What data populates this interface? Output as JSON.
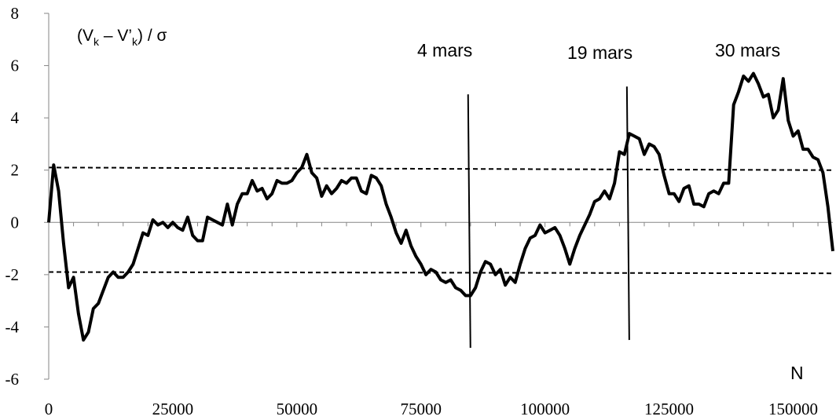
{
  "chart_data": {
    "type": "line",
    "ylabel": {
      "open": "(V",
      "sub1": "k",
      "minus": " – V’",
      "sub2": "k",
      "close": ") / σ"
    },
    "xlabel": "N",
    "xlim": [
      0,
      158000
    ],
    "ylim": [
      -6,
      8
    ],
    "x_ticks": [
      0,
      25000,
      50000,
      75000,
      100000,
      125000,
      150000
    ],
    "y_ticks": [
      -6,
      -4,
      -2,
      0,
      2,
      4,
      6,
      8
    ],
    "series": [
      {
        "color": "#000000",
        "x": [
          0,
          1000,
          2000,
          3000,
          4000,
          5000,
          6000,
          7000,
          8000,
          9000,
          10000,
          11000,
          12000,
          13000,
          14000,
          15000,
          16000,
          17000,
          18000,
          19000,
          20000,
          21000,
          22000,
          23000,
          24000,
          25000,
          26000,
          27000,
          28000,
          29000,
          30000,
          31000,
          32000,
          33000,
          34000,
          35000,
          36000,
          37000,
          38000,
          39000,
          40000,
          41000,
          42000,
          43000,
          44000,
          45000,
          46000,
          47000,
          48000,
          49000,
          50000,
          51000,
          52000,
          53000,
          54000,
          55000,
          56000,
          57000,
          58000,
          59000,
          60000,
          61000,
          62000,
          63000,
          64000,
          65000,
          66000,
          67000,
          68000,
          69000,
          70000,
          71000,
          72000,
          73000,
          74000,
          75000,
          76000,
          77000,
          78000,
          79000,
          80000,
          81000,
          82000,
          83000,
          84000,
          85000,
          86000,
          87000,
          88000,
          89000,
          90000,
          91000,
          92000,
          93000,
          94000,
          95000,
          96000,
          97000,
          98000,
          99000,
          100000,
          101000,
          102000,
          103000,
          104000,
          105000,
          106000,
          107000,
          108000,
          109000,
          110000,
          111000,
          112000,
          113000,
          114000,
          115000,
          116000,
          117000,
          118000,
          119000,
          120000,
          121000,
          122000,
          123000,
          124000,
          125000,
          126000,
          127000,
          128000,
          129000,
          130000,
          131000,
          132000,
          133000,
          134000,
          135000,
          136000,
          137000,
          138000,
          139000,
          140000,
          141000,
          142000,
          143000,
          144000,
          145000,
          146000,
          147000,
          148000,
          149000,
          150000,
          151000,
          152000,
          153000,
          154000,
          155000,
          156000,
          157000,
          158000
        ],
        "values": [
          0,
          2.2,
          1.2,
          -0.8,
          -2.5,
          -2.1,
          -3.5,
          -4.5,
          -4.2,
          -3.3,
          -3.1,
          -2.6,
          -2.1,
          -1.9,
          -2.1,
          -2.1,
          -1.9,
          -1.6,
          -1.0,
          -0.4,
          -0.5,
          0.1,
          -0.1,
          0.0,
          -0.2,
          0.0,
          -0.2,
          -0.3,
          0.2,
          -0.5,
          -0.7,
          -0.7,
          0.2,
          0.1,
          0.0,
          -0.1,
          0.7,
          -0.1,
          0.7,
          1.1,
          1.1,
          1.6,
          1.2,
          1.3,
          0.9,
          1.1,
          1.6,
          1.5,
          1.5,
          1.6,
          1.9,
          2.1,
          2.6,
          1.9,
          1.7,
          1.0,
          1.4,
          1.1,
          1.3,
          1.6,
          1.5,
          1.7,
          1.7,
          1.2,
          1.1,
          1.8,
          1.7,
          1.4,
          0.7,
          0.2,
          -0.4,
          -0.8,
          -0.3,
          -0.9,
          -1.3,
          -1.6,
          -2.0,
          -1.8,
          -1.9,
          -2.2,
          -2.3,
          -2.2,
          -2.5,
          -2.6,
          -2.8,
          -2.8,
          -2.5,
          -1.9,
          -1.5,
          -1.6,
          -2.0,
          -1.8,
          -2.4,
          -2.1,
          -2.3,
          -1.6,
          -1.0,
          -0.6,
          -0.5,
          -0.1,
          -0.4,
          -0.3,
          -0.2,
          -0.5,
          -1.0,
          -1.6,
          -1.0,
          -0.5,
          -0.1,
          0.3,
          0.8,
          0.9,
          1.2,
          0.9,
          1.5,
          2.7,
          2.6,
          3.4,
          3.3,
          3.2,
          2.6,
          3.0,
          2.9,
          2.6,
          1.8,
          1.1,
          1.1,
          0.8,
          1.3,
          1.4,
          0.7,
          0.7,
          0.6,
          1.1,
          1.2,
          1.1,
          1.5,
          1.5,
          4.5,
          5.0,
          5.6,
          5.4,
          5.7,
          5.3,
          4.8,
          4.9,
          4.0,
          4.3,
          5.5,
          3.9,
          3.3,
          3.5,
          2.8,
          2.8,
          2.5,
          2.4,
          1.9,
          0.6,
          -1.1
        ]
      }
    ],
    "threshold_lines": [
      {
        "y_start": 2.1,
        "y_end": 2.0,
        "style": "dashed"
      },
      {
        "y_start": -1.9,
        "y_end": -1.95,
        "style": "dashed"
      }
    ],
    "annotations": [
      {
        "label": "4 mars",
        "x": 84500,
        "y_top": 4.9,
        "y_bottom": -4.8
      },
      {
        "label": "19 mars",
        "x": 116500,
        "y_top": 5.2,
        "y_bottom": -4.5
      },
      {
        "label": "30 mars",
        "x": null,
        "y_top": null,
        "y_bottom": null
      }
    ]
  }
}
